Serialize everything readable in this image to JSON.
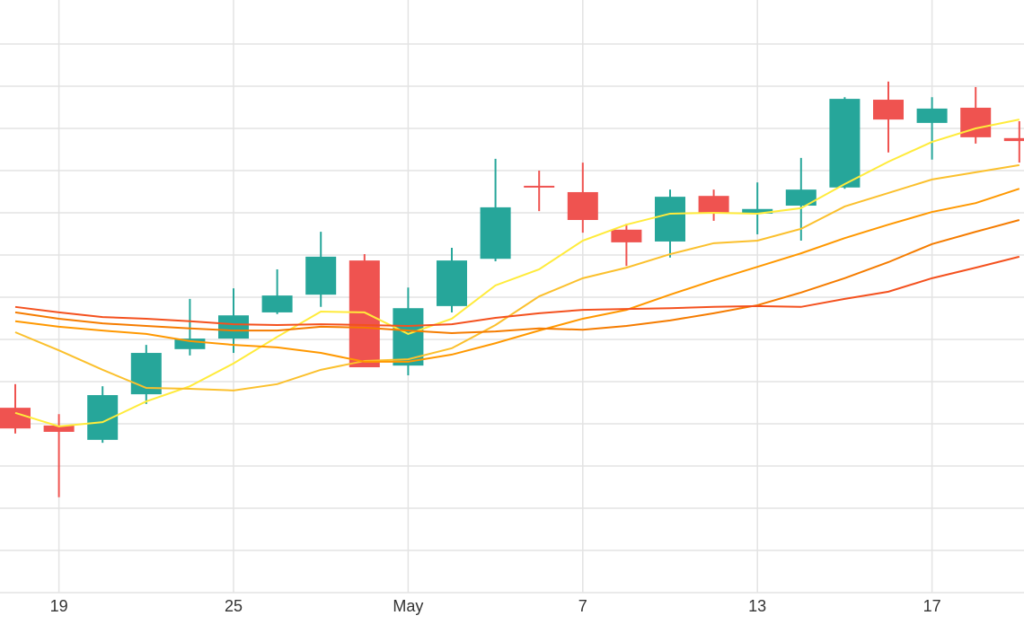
{
  "chart_data": {
    "type": "candlestick",
    "categories": [
      null,
      "19",
      null,
      null,
      null,
      "25",
      null,
      null,
      null,
      "May",
      null,
      null,
      null,
      "7",
      null,
      null,
      null,
      "13",
      null,
      null,
      null,
      "17",
      null,
      null
    ],
    "open": [
      4.38,
      3.96,
      3.62,
      4.7,
      5.77,
      6.02,
      6.64,
      7.06,
      7.87,
      5.38,
      6.79,
      7.91,
      9.64,
      9.49,
      8.6,
      8.32,
      9.4,
      8.98,
      9.17,
      9.6,
      11.68,
      11.13,
      11.49,
      10.77
    ],
    "high": [
      4.94,
      4.23,
      4.89,
      5.87,
      6.96,
      7.21,
      7.66,
      8.55,
      8.02,
      7.23,
      8.17,
      10.28,
      10.0,
      10.19,
      8.74,
      9.55,
      9.55,
      9.72,
      10.3,
      11.74,
      12.11,
      11.74,
      11.98,
      11.17
    ],
    "low": [
      3.77,
      2.26,
      3.55,
      4.47,
      5.62,
      5.68,
      6.6,
      6.77,
      5.34,
      5.15,
      6.64,
      7.85,
      9.04,
      8.53,
      7.74,
      7.94,
      8.81,
      8.49,
      8.34,
      9.57,
      10.43,
      10.26,
      10.64,
      10.19
    ],
    "close": [
      3.89,
      3.81,
      4.68,
      5.68,
      6.02,
      6.57,
      7.04,
      7.96,
      5.34,
      6.74,
      7.87,
      9.13,
      9.6,
      8.83,
      8.3,
      9.38,
      9.0,
      9.09,
      9.55,
      11.7,
      11.21,
      11.47,
      10.79,
      10.7
    ],
    "up_color": "#26a69a",
    "down_color": "#ef5350",
    "series": [
      {
        "color": "#ffeb3b",
        "values": [
          4.26,
          3.94,
          4.04,
          4.53,
          4.89,
          5.43,
          6.06,
          6.66,
          6.64,
          6.13,
          6.49,
          7.28,
          7.66,
          8.34,
          8.72,
          8.98,
          9.0,
          8.98,
          9.11,
          9.68,
          10.21,
          10.68,
          11.0,
          11.21
        ]
      },
      {
        "color": "#fbc02d",
        "values": [
          6.17,
          5.74,
          5.28,
          4.85,
          4.83,
          4.79,
          4.94,
          5.28,
          5.49,
          5.53,
          5.79,
          6.34,
          7.02,
          7.45,
          7.7,
          8.02,
          8.28,
          8.34,
          8.62,
          9.15,
          9.47,
          9.79,
          9.96,
          10.13
        ]
      },
      {
        "color": "#ff9800",
        "values": [
          6.43,
          6.3,
          6.21,
          6.13,
          5.96,
          5.87,
          5.81,
          5.68,
          5.47,
          5.47,
          5.64,
          5.91,
          6.21,
          6.49,
          6.7,
          7.06,
          7.4,
          7.72,
          8.04,
          8.4,
          8.72,
          9.02,
          9.23,
          9.57
        ]
      },
      {
        "color": "#f57c00",
        "values": [
          6.64,
          6.49,
          6.38,
          6.32,
          6.26,
          6.21,
          6.21,
          6.3,
          6.28,
          6.21,
          6.15,
          6.19,
          6.26,
          6.23,
          6.32,
          6.45,
          6.62,
          6.81,
          7.11,
          7.45,
          7.83,
          8.26,
          8.55,
          8.83
        ]
      },
      {
        "color": "#f4511e",
        "values": [
          6.77,
          6.64,
          6.53,
          6.49,
          6.43,
          6.36,
          6.34,
          6.36,
          6.34,
          6.32,
          6.36,
          6.51,
          6.62,
          6.7,
          6.72,
          6.74,
          6.77,
          6.79,
          6.77,
          6.96,
          7.13,
          7.45,
          7.7,
          7.96
        ]
      }
    ],
    "ylim": [
      0,
      14
    ],
    "yticks": [
      1,
      2,
      3,
      4,
      5,
      6,
      7,
      8,
      9,
      10,
      11,
      12,
      13
    ],
    "grid": true
  }
}
